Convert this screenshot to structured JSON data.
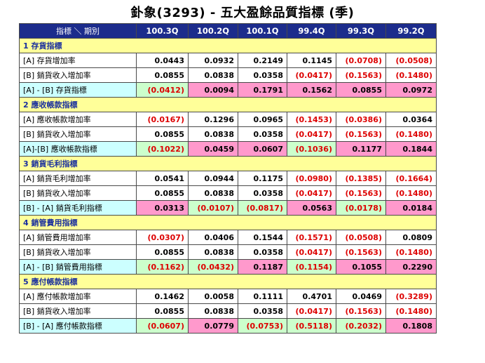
{
  "title": "釙象(3293) -  五大盈餘品質指標 (季)",
  "header": {
    "label": "指標 ＼ 期別",
    "periods": [
      "100.3Q",
      "100.2Q",
      "100.1Q",
      "99.4Q",
      "99.3Q",
      "99.2Q"
    ]
  },
  "sections": [
    {
      "title": "1 存貨指標",
      "rows": [
        {
          "label": "[A] 存貨增加率",
          "values": [
            "0.0443",
            "0.0932",
            "0.2149",
            "0.1145",
            "(0.0708)",
            "(0.0508)"
          ]
        },
        {
          "label": "[B] 銷貨收入增加率",
          "values": [
            "0.0855",
            "0.0838",
            "0.0358",
            "(0.0417)",
            "(0.1563)",
            "(0.1480)"
          ]
        },
        {
          "label": "[A] - [B] 存貨指標",
          "values": [
            "(0.0412)",
            "0.0094",
            "0.1791",
            "0.1562",
            "0.0855",
            "0.0972"
          ],
          "bg": [
            "green",
            "pink",
            "pink",
            "pink",
            "pink",
            "pink"
          ]
        }
      ]
    },
    {
      "title": "2 應收帳款指標",
      "rows": [
        {
          "label": "[A] 應收帳款增加率",
          "values": [
            "(0.0167)",
            "0.1296",
            "0.0965",
            "(0.1453)",
            "(0.0386)",
            "0.0364"
          ]
        },
        {
          "label": "[B] 銷貨收入增加率",
          "values": [
            "0.0855",
            "0.0838",
            "0.0358",
            "(0.0417)",
            "(0.1563)",
            "(0.1480)"
          ]
        },
        {
          "label": "[A]-[B] 應收帳款指標",
          "values": [
            "(0.1022)",
            "0.0459",
            "0.0607",
            "(0.1036)",
            "0.1177",
            "0.1844"
          ],
          "bg": [
            "green",
            "pink",
            "pink",
            "green",
            "pink",
            "pink"
          ]
        }
      ]
    },
    {
      "title": "3 銷貨毛利指標",
      "rows": [
        {
          "label": "[A] 銷貨毛利增加率",
          "values": [
            "0.0541",
            "0.0944",
            "0.1175",
            "(0.0980)",
            "(0.1385)",
            "(0.1664)"
          ]
        },
        {
          "label": "[B] 銷貨收入增加率",
          "values": [
            "0.0855",
            "0.0838",
            "0.0358",
            "(0.0417)",
            "(0.1563)",
            "(0.1480)"
          ]
        },
        {
          "label": "[B] - [A] 銷貨毛利指標",
          "values": [
            "0.0313",
            "(0.0107)",
            "(0.0817)",
            "0.0563",
            "(0.0178)",
            "0.0184"
          ],
          "bg": [
            "pink",
            "green",
            "green",
            "pink",
            "green",
            "pink"
          ]
        }
      ]
    },
    {
      "title": "4 銷管費用指標",
      "rows": [
        {
          "label": "[A] 銷管費用增加率",
          "values": [
            "(0.0307)",
            "0.0406",
            "0.1544",
            "(0.1571)",
            "(0.0508)",
            "0.0809"
          ]
        },
        {
          "label": "[B] 銷貨收入增加率",
          "values": [
            "0.0855",
            "0.0838",
            "0.0358",
            "(0.0417)",
            "(0.1563)",
            "(0.1480)"
          ]
        },
        {
          "label": "[A] - [B] 銷管費用指標",
          "values": [
            "(0.1162)",
            "(0.0432)",
            "0.1187",
            "(0.1154)",
            "0.1055",
            "0.2290"
          ],
          "bg": [
            "green",
            "green",
            "pink",
            "green",
            "pink",
            "pink"
          ]
        }
      ]
    },
    {
      "title": "5 應付帳款指標",
      "rows": [
        {
          "label": "[A] 應付帳款增加率",
          "values": [
            "0.1462",
            "0.0058",
            "0.1111",
            "0.4701",
            "0.0469",
            "(0.3289)"
          ]
        },
        {
          "label": "[B] 銷貨收入增加率",
          "values": [
            "0.0855",
            "0.0838",
            "0.0358",
            "(0.0417)",
            "(0.1563)",
            "(0.1480)"
          ]
        },
        {
          "label": "[B] - [A] 應付帳款指標",
          "values": [
            "(0.0607)",
            "0.0779",
            "(0.0753)",
            "(0.5118)",
            "(0.2032)",
            "0.1808"
          ],
          "bg": [
            "green",
            "pink",
            "green",
            "green",
            "green",
            "pink"
          ]
        }
      ]
    }
  ],
  "colors": {
    "header_bg": "#1c2c8c",
    "section_bg": "#ffff99",
    "section_text": "#1a2f9e",
    "indicator_label_bg": "#ccffff",
    "good_bg": "#ccffcc",
    "bad_bg": "#ff99cc",
    "negative_text": "#dd0000"
  }
}
